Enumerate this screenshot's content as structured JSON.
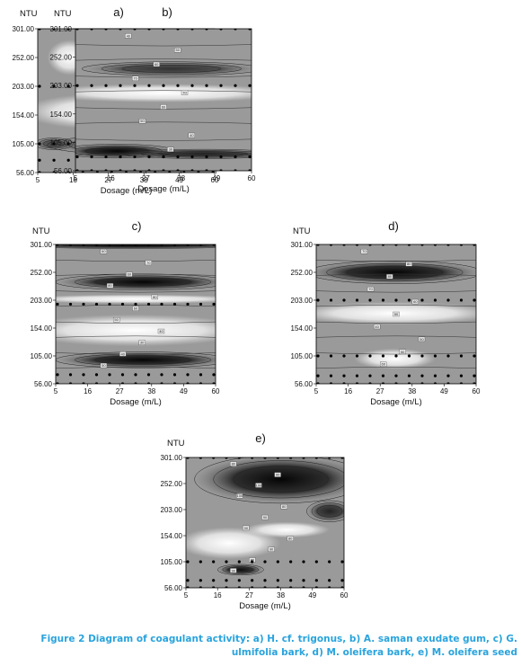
{
  "caption": {
    "figure": "Figure 2",
    "text": "Diagram of coagulant activity: a) H. cf. trigonus, b) A. saman exudate gum, c) G. ulmifolia bark, d) M. oleifera bark, e) M. oleifera seed"
  },
  "chart_data": [
    {
      "type": "contour",
      "panel_label": "a)",
      "ylabel": "NTU",
      "xlabel": "Dosage (m/L)",
      "x_ticks": [
        "5",
        "16",
        "27",
        "38",
        "49",
        "60"
      ],
      "y_ticks": [
        "56.00",
        "105.00",
        "154.00",
        "203.00",
        "252.00",
        "301.00"
      ],
      "xlim": [
        5,
        60
      ],
      "ylim": [
        56,
        301
      ],
      "sample_rows_ntu": [
        56,
        77,
        105,
        203,
        301
      ],
      "contour_tags": [
        "50",
        "60",
        "70",
        "80",
        "70"
      ],
      "dark_regions": [
        {
          "x": 42,
          "y": 248,
          "rx": 22,
          "ry": 32,
          "v": 1.0
        },
        {
          "x": 38,
          "y": 103,
          "rx": 30,
          "ry": 17,
          "v": 1.0
        },
        {
          "x": 10,
          "y": 105,
          "rx": 6,
          "ry": 10,
          "v": 0.6
        }
      ],
      "light_regions": [
        {
          "x": 15,
          "y": 252,
          "rx": 7,
          "ry": 30
        },
        {
          "x": 25,
          "y": 160,
          "rx": 25,
          "ry": 30
        }
      ]
    },
    {
      "type": "contour",
      "panel_label": "b)",
      "ylabel": "NTU",
      "xlabel": "Dosage (m/L)",
      "x_ticks": [
        "5",
        "16",
        "27",
        "38",
        "49",
        "60"
      ],
      "y_ticks": [
        "56.00",
        "105.00",
        "154.00",
        "203.00",
        "252.00",
        "301.00"
      ],
      "xlim": [
        5,
        60
      ],
      "ylim": [
        56,
        301
      ],
      "sample_rows_ntu": [
        56,
        80,
        203,
        301
      ],
      "contour_tags": [
        "40",
        "50",
        "60",
        "70",
        "70",
        "60",
        "50",
        "40",
        "30"
      ],
      "dark_regions": [
        {
          "x": 35,
          "y": 232,
          "rx": 28,
          "ry": 12,
          "v": 0.7
        },
        {
          "x": 18,
          "y": 90,
          "rx": 18,
          "ry": 12,
          "v": 1.0
        },
        {
          "x": 45,
          "y": 85,
          "rx": 25,
          "ry": 8,
          "v": 0.85
        }
      ],
      "light_regions": [
        {
          "x": 32,
          "y": 190,
          "rx": 40,
          "ry": 16
        }
      ]
    },
    {
      "type": "contour",
      "panel_label": "c)",
      "ylabel": "NTU",
      "xlabel": "Dosage (m/L)",
      "x_ticks": [
        "5",
        "16",
        "27",
        "38",
        "49",
        "60"
      ],
      "y_ticks": [
        "56.00",
        "105.00",
        "154.00",
        "203.00",
        "252.00",
        "301.00"
      ],
      "xlim": [
        5,
        60
      ],
      "ylim": [
        56,
        301
      ],
      "sample_rows_ntu": [
        56,
        72,
        196,
        301
      ],
      "contour_tags": [
        "60",
        "70",
        "60",
        "80",
        "80",
        "60",
        "50",
        "40",
        "30",
        "40",
        "50"
      ],
      "dark_regions": [
        {
          "x": 32,
          "y": 300,
          "rx": 45,
          "ry": 6,
          "v": 1.0
        },
        {
          "x": 35,
          "y": 235,
          "rx": 30,
          "ry": 14,
          "v": 1.0
        },
        {
          "x": 35,
          "y": 98,
          "rx": 30,
          "ry": 14,
          "v": 1.0
        }
      ],
      "light_regions": [
        {
          "x": 32,
          "y": 205,
          "rx": 40,
          "ry": 8
        },
        {
          "x": 32,
          "y": 150,
          "rx": 40,
          "ry": 28
        }
      ]
    },
    {
      "type": "contour",
      "panel_label": "d)",
      "ylabel": "NTU",
      "xlabel": "Dosage (m/L)",
      "x_ticks": [
        "5",
        "16",
        "27",
        "38",
        "49",
        "60"
      ],
      "y_ticks": [
        "56.00",
        "105.00",
        "154.00",
        "203.00",
        "252.00",
        "301.00"
      ],
      "xlim": [
        5,
        60
      ],
      "ylim": [
        56,
        301
      ],
      "sample_rows_ntu": [
        56,
        70,
        105,
        203,
        301
      ],
      "contour_tags": [
        "70",
        "80",
        "80",
        "70",
        "60",
        "50",
        "40",
        "50",
        "50",
        "60"
      ],
      "dark_regions": [
        {
          "x": 32,
          "y": 252,
          "rx": 30,
          "ry": 20,
          "v": 1.0
        }
      ],
      "light_regions": [
        {
          "x": 32,
          "y": 100,
          "rx": 14,
          "ry": 18
        },
        {
          "x": 32,
          "y": 180,
          "rx": 35,
          "ry": 20
        }
      ]
    },
    {
      "type": "contour",
      "panel_label": "e)",
      "ylabel": "NTU",
      "xlabel": "Dosage (m/L)",
      "x_ticks": [
        "5",
        "16",
        "27",
        "38",
        "49",
        "60"
      ],
      "y_ticks": [
        "56.00",
        "105.00",
        "154.00",
        "203.00",
        "252.00",
        "301.00"
      ],
      "xlim": [
        5,
        60
      ],
      "ylim": [
        56,
        301
      ],
      "sample_rows_ntu": [
        56,
        70,
        105,
        301
      ],
      "contour_tags": [
        "80",
        "90",
        "100",
        "100",
        "80",
        "90",
        "90",
        "80",
        "90",
        "80",
        "90"
      ],
      "dark_regions": [
        {
          "x": 38,
          "y": 260,
          "rx": 30,
          "ry": 45,
          "v": 1.0
        },
        {
          "x": 55,
          "y": 200,
          "rx": 8,
          "ry": 20,
          "v": 0.8
        },
        {
          "x": 24,
          "y": 90,
          "rx": 8,
          "ry": 10,
          "v": 0.95
        }
      ],
      "light_regions": [
        {
          "x": 20,
          "y": 140,
          "rx": 18,
          "ry": 30
        },
        {
          "x": 40,
          "y": 165,
          "rx": 15,
          "ry": 15
        }
      ]
    }
  ]
}
